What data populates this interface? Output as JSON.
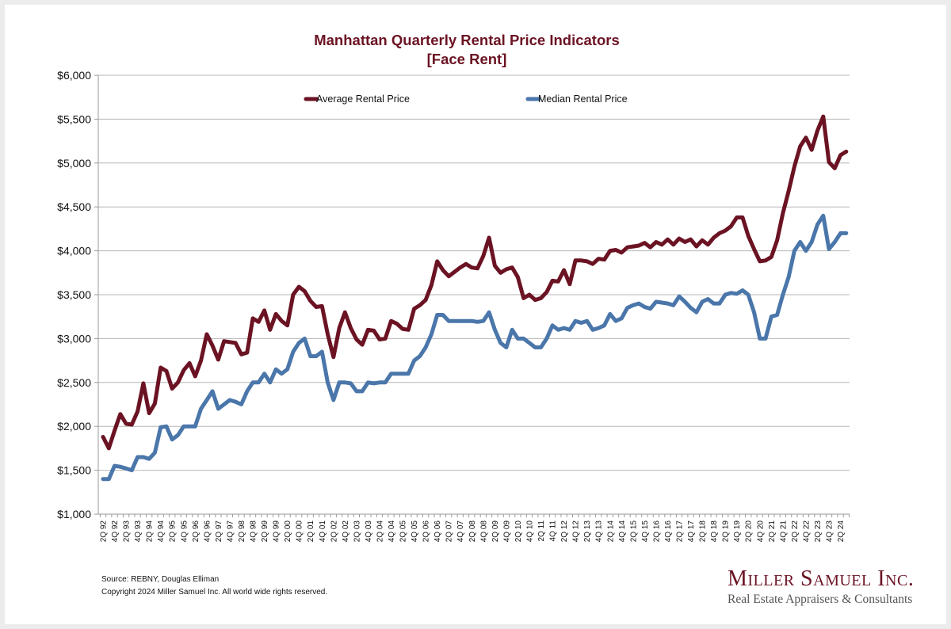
{
  "chart_data": {
    "type": "line",
    "title": "Manhattan Quarterly Rental Price Indicators",
    "subtitle": "[Face Rent]",
    "xlabel": "",
    "ylabel": "",
    "ylim": [
      1000,
      6000
    ],
    "yticks": [
      1000,
      1500,
      2000,
      2500,
      3000,
      3500,
      4000,
      4500,
      5000,
      5500,
      6000
    ],
    "ytick_labels": [
      "$1,000",
      "$1,500",
      "$2,000",
      "$2,500",
      "$3,000",
      "$3,500",
      "$4,000",
      "$4,500",
      "$5,000",
      "$5,500",
      "$6,000"
    ],
    "grid": true,
    "legend_position": "top-inside",
    "x_start": "2Q 92",
    "x_end": "3Q 24",
    "xtick_labels": [
      "2Q 92",
      "4Q 92",
      "2Q 93",
      "4Q 93",
      "2Q 94",
      "4Q 94",
      "2Q 95",
      "4Q 95",
      "2Q 96",
      "4Q 96",
      "2Q 97",
      "4Q 97",
      "2Q 98",
      "4Q 98",
      "2Q 99",
      "4Q 99",
      "2Q 00",
      "4Q 00",
      "2Q 01",
      "4Q 01",
      "2Q 02",
      "4Q 02",
      "2Q 03",
      "4Q 03",
      "2Q 04",
      "4Q 04",
      "2Q 05",
      "4Q 05",
      "2Q 06",
      "4Q 06",
      "2Q 07",
      "4Q 07",
      "2Q 08",
      "4Q 08",
      "2Q 09",
      "4Q 09",
      "2Q 10",
      "4Q 10",
      "2Q 11",
      "4Q 11",
      "2Q 12",
      "4Q 12",
      "2Q 13",
      "4Q 13",
      "2Q 14",
      "4Q 14",
      "2Q 15",
      "4Q 15",
      "2Q 16",
      "4Q 16",
      "2Q 17",
      "4Q 17",
      "2Q 18",
      "4Q 18",
      "2Q 19",
      "4Q 19",
      "2Q 20",
      "4Q 20",
      "2Q 21",
      "4Q 21",
      "2Q 22",
      "4Q 22",
      "2Q 23",
      "4Q 23",
      "2Q 24"
    ],
    "series": [
      {
        "name": "Average Rental Price",
        "color": "#6b1323",
        "values": [
          1880,
          1750,
          1950,
          2140,
          2030,
          2020,
          2170,
          2490,
          2150,
          2260,
          2670,
          2630,
          2430,
          2500,
          2640,
          2720,
          2570,
          2750,
          3050,
          2920,
          2760,
          2970,
          2960,
          2950,
          2820,
          2840,
          3230,
          3190,
          3320,
          3100,
          3280,
          3200,
          3150,
          3500,
          3590,
          3540,
          3430,
          3360,
          3370,
          3050,
          2790,
          3120,
          3300,
          3120,
          2990,
          2930,
          3100,
          3090,
          2990,
          3000,
          3200,
          3170,
          3110,
          3100,
          3340,
          3380,
          3440,
          3610,
          3880,
          3780,
          3710,
          3760,
          3810,
          3850,
          3810,
          3800,
          3940,
          4150,
          3830,
          3750,
          3790,
          3810,
          3700,
          3460,
          3500,
          3440,
          3460,
          3530,
          3660,
          3650,
          3780,
          3620,
          3890,
          3890,
          3880,
          3850,
          3910,
          3900,
          4000,
          4010,
          3980,
          4040,
          4050,
          4060,
          4090,
          4040,
          4100,
          4070,
          4130,
          4070,
          4140,
          4100,
          4130,
          4050,
          4120,
          4070,
          4150,
          4200,
          4230,
          4280,
          4380,
          4380,
          4170,
          4020,
          3880,
          3890,
          3930,
          4120,
          4430,
          4680,
          4960,
          5190,
          5290,
          5150,
          5370,
          5530,
          5010,
          4940,
          5090,
          5130
        ]
      },
      {
        "name": "Median Rental Price",
        "color": "#4a76aa",
        "values": [
          1400,
          1400,
          1550,
          1540,
          1520,
          1500,
          1650,
          1650,
          1630,
          1700,
          1990,
          2000,
          1850,
          1900,
          2000,
          2000,
          2000,
          2200,
          2300,
          2400,
          2200,
          2250,
          2300,
          2280,
          2250,
          2400,
          2500,
          2500,
          2600,
          2500,
          2650,
          2600,
          2650,
          2850,
          2950,
          3000,
          2800,
          2800,
          2850,
          2500,
          2300,
          2500,
          2500,
          2490,
          2400,
          2400,
          2500,
          2490,
          2500,
          2500,
          2600,
          2600,
          2600,
          2600,
          2750,
          2800,
          2900,
          3050,
          3270,
          3270,
          3200,
          3200,
          3200,
          3200,
          3200,
          3190,
          3200,
          3300,
          3100,
          2950,
          2900,
          3100,
          3000,
          3000,
          2950,
          2900,
          2900,
          3000,
          3150,
          3100,
          3120,
          3100,
          3200,
          3180,
          3200,
          3100,
          3120,
          3150,
          3280,
          3200,
          3230,
          3350,
          3380,
          3400,
          3360,
          3340,
          3420,
          3410,
          3400,
          3380,
          3480,
          3420,
          3350,
          3300,
          3420,
          3450,
          3400,
          3400,
          3500,
          3520,
          3510,
          3550,
          3500,
          3300,
          3000,
          3000,
          3250,
          3270,
          3500,
          3700,
          4000,
          4100,
          4000,
          4100,
          4300,
          4400,
          4020,
          4100,
          4200,
          4200
        ]
      }
    ]
  },
  "footer": {
    "source": "Source: REBNY, Douglas Elliman",
    "copyright": "Copyright 2024 Miller Samuel Inc.  All world wide rights reserved."
  },
  "logo": {
    "name": "Miller Samuel Inc.",
    "tagline": "Real Estate Appraisers & Consultants"
  }
}
